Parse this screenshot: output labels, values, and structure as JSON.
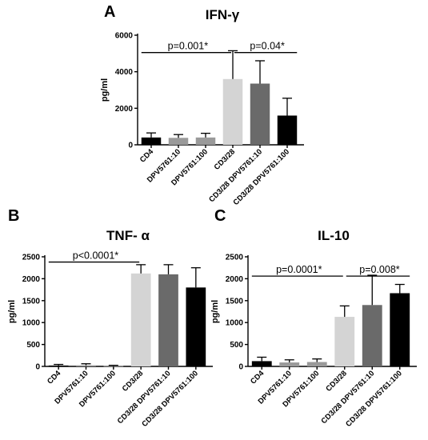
{
  "figure": {
    "panels": [
      "A",
      "B",
      "C"
    ]
  },
  "chart_data": [
    {
      "panel": "A",
      "type": "bar",
      "title": "IFN-γ",
      "ylabel": "pg/ml",
      "xlabel": "",
      "ylim": [
        0,
        6000
      ],
      "yticks": [
        "0",
        "2000",
        "4000",
        "6000"
      ],
      "categories": [
        "CD4",
        "DPV5761:10",
        "DPV5761:100",
        "CD3/28",
        "CD3/28 DPV5761:10",
        "CD3/28 DPV5761:100"
      ],
      "values": [
        400,
        380,
        400,
        3600,
        3350,
        1600
      ],
      "errors": [
        250,
        180,
        230,
        1550,
        1250,
        950
      ],
      "colors": [
        "#000000",
        "#9a9a9a",
        "#9a9a9a",
        "#d4d4d4",
        "#6a6a6a",
        "#000000"
      ],
      "annotations": [
        {
          "text": "p=0.001*",
          "from": 0,
          "to": 3,
          "y": 5050
        },
        {
          "text": "p=0.04*",
          "from": 3,
          "to": 5,
          "y": 5050
        }
      ]
    },
    {
      "panel": "B",
      "type": "bar",
      "title": "TNF- α",
      "ylabel": "pg/ml",
      "xlabel": "",
      "ylim": [
        0,
        2500
      ],
      "yticks": [
        "0",
        "500",
        "1000",
        "1500",
        "2000",
        "2500"
      ],
      "categories": [
        "CD4",
        "DPV5761:10",
        "DPV5761:100",
        "CD3/28",
        "CD3/28 DPV5761:10",
        "CD3/28 DPV5761:100"
      ],
      "values": [
        20,
        25,
        10,
        2120,
        2100,
        1800
      ],
      "errors": [
        25,
        35,
        15,
        200,
        220,
        450
      ],
      "colors": [
        "#000000",
        "#9a9a9a",
        "#9a9a9a",
        "#d4d4d4",
        "#6a6a6a",
        "#000000"
      ],
      "annotations": [
        {
          "text": "p<0.0001*",
          "from": 0,
          "to": 3,
          "y": 2380
        }
      ]
    },
    {
      "panel": "C",
      "type": "bar",
      "title": "IL-10",
      "ylabel": "pg/ml",
      "xlabel": "",
      "ylim": [
        0,
        2500
      ],
      "yticks": [
        "0",
        "500",
        "1000",
        "1500",
        "2000",
        "2500"
      ],
      "categories": [
        "CD4",
        "DPV5761:10",
        "DPV5761:100",
        "CD3/28",
        "CD3/28 DPV5761:10",
        "CD3/28 DPV5761:100"
      ],
      "values": [
        120,
        90,
        100,
        1130,
        1400,
        1670
      ],
      "errors": [
        90,
        60,
        70,
        250,
        680,
        200
      ],
      "colors": [
        "#000000",
        "#9a9a9a",
        "#9a9a9a",
        "#d4d4d4",
        "#6a6a6a",
        "#000000"
      ],
      "annotations": [
        {
          "text": "p=0.0001*",
          "from": 0,
          "to": 3,
          "y": 2060
        },
        {
          "text": "p=0.008*",
          "from": 3,
          "to": 5,
          "y": 2060
        }
      ]
    }
  ]
}
